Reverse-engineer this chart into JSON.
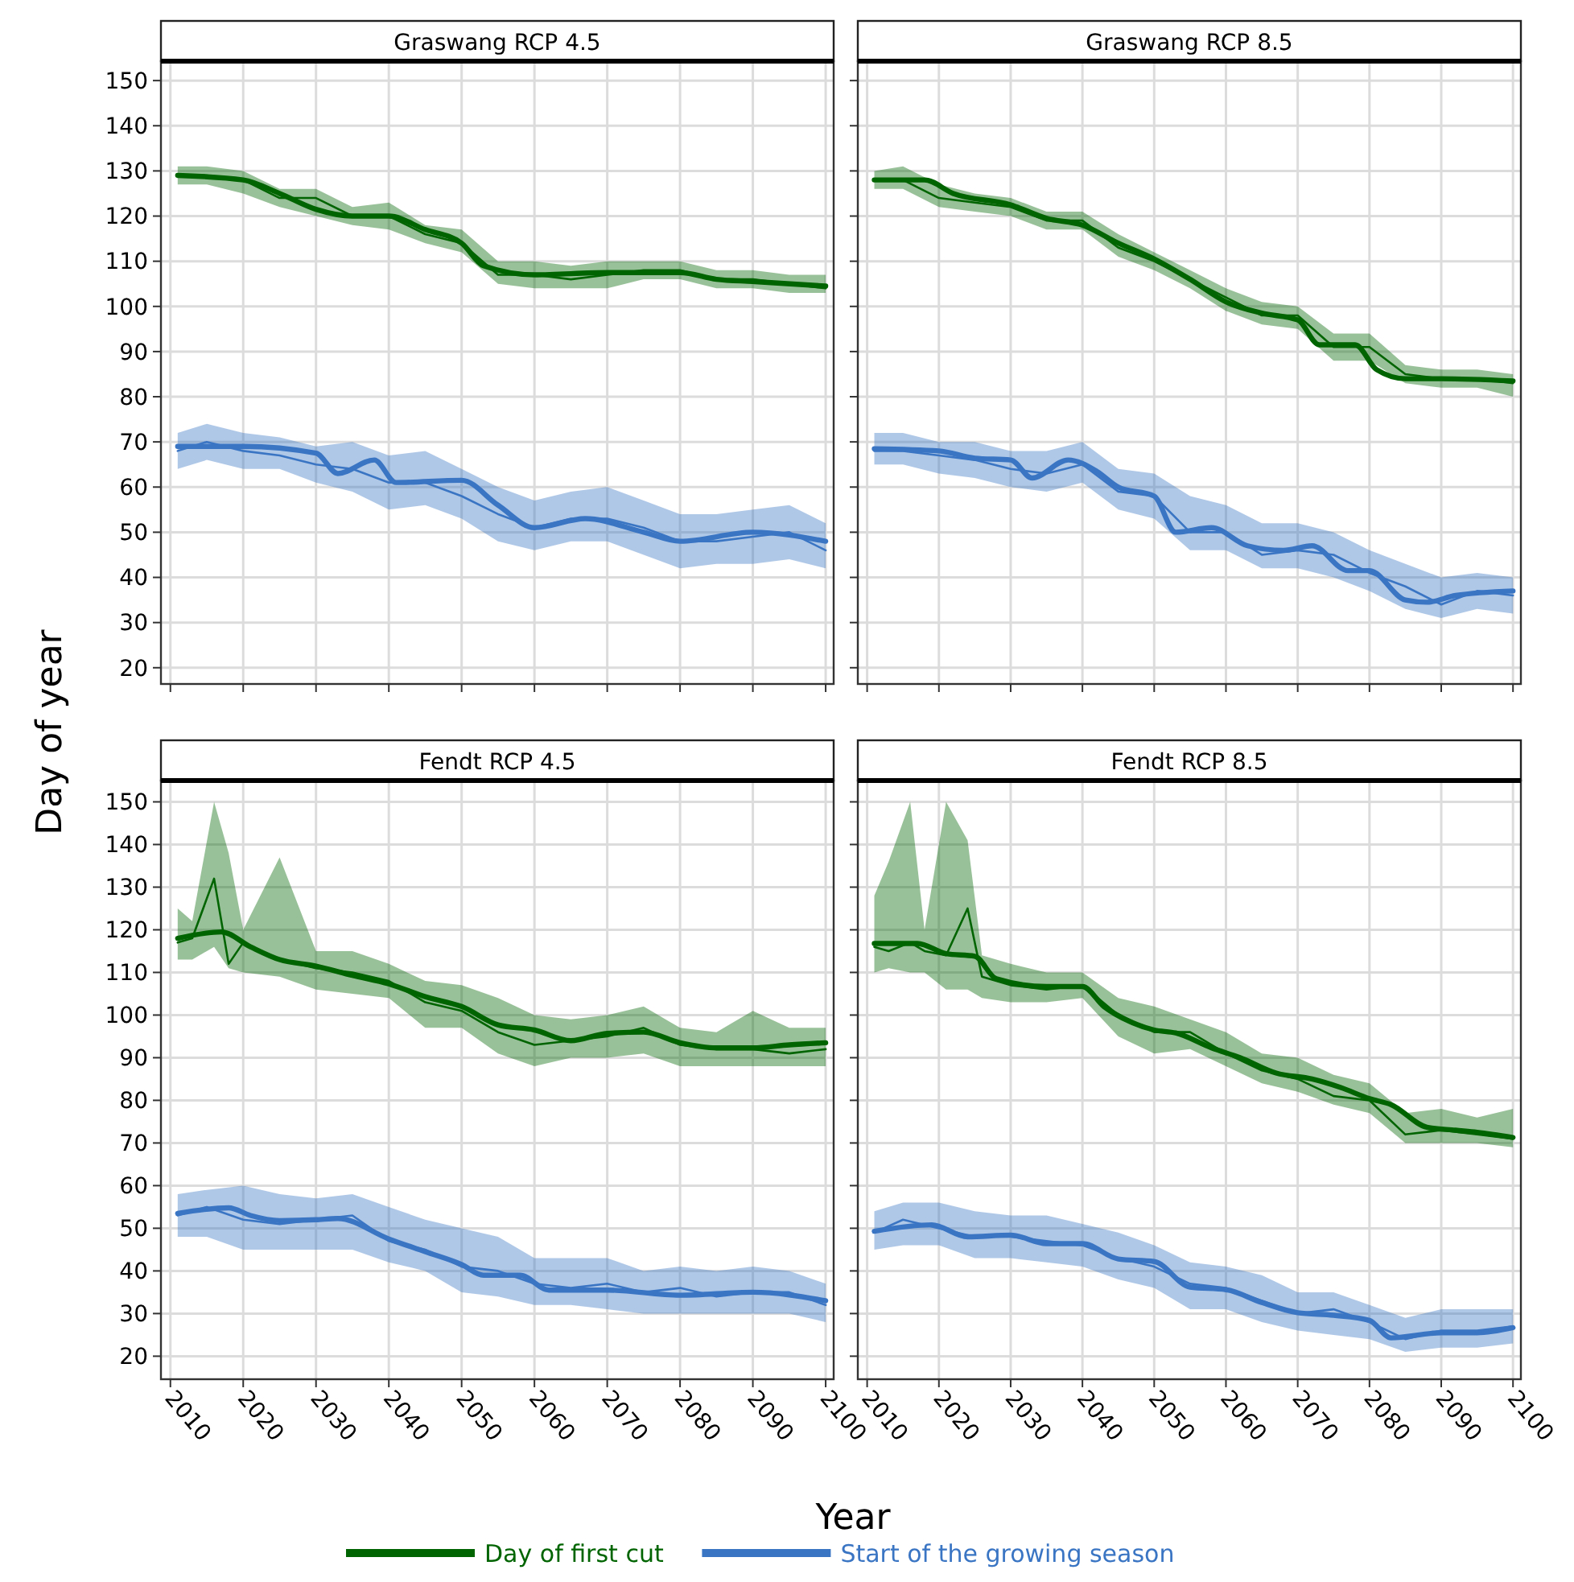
{
  "chart_data": [
    {
      "type": "line",
      "title": "Graswang RCP 4.5",
      "ylabel": "Day of year",
      "xlim": [
        2008.7,
        2101.1
      ],
      "ylim": [
        16.4,
        154.3
      ],
      "xticks": [
        2010,
        2020,
        2030,
        2040,
        2050,
        2060,
        2070,
        2080,
        2090,
        2100
      ],
      "yticks": [
        20,
        30,
        40,
        50,
        60,
        70,
        80,
        90,
        100,
        110,
        120,
        130,
        140,
        150
      ],
      "grid": true,
      "tick_labels": "y",
      "series": [
        {
          "color": "#006400",
          "x": [
            2011,
            2015,
            2020,
            2025,
            2030,
            2035,
            2040,
            2045,
            2050,
            2055,
            2060,
            2065,
            2070,
            2075,
            2080,
            2085,
            2090,
            2095,
            2100
          ],
          "values": [
            129,
            129,
            128,
            124,
            124,
            120,
            120,
            116,
            114,
            107,
            107,
            106,
            107,
            108,
            108,
            106,
            106,
            105,
            104
          ],
          "lower": [
            127,
            127,
            125,
            122,
            120,
            118,
            117,
            114,
            112,
            105,
            104,
            104,
            104,
            106,
            106,
            104,
            104,
            103,
            103
          ],
          "upper": [
            131,
            131,
            130,
            126,
            126,
            122,
            123,
            118,
            117,
            110,
            110,
            109,
            110,
            110,
            110,
            108,
            108,
            107,
            107
          ]
        },
        {
          "color": "#006400",
          "x": [
            2011,
            2020,
            2025,
            2030,
            2035,
            2040,
            2045,
            2050,
            2053,
            2060,
            2070,
            2080,
            2085,
            2090,
            2100
          ],
          "values": [
            129,
            128,
            125,
            121.5,
            120,
            120,
            117,
            114,
            109,
            107,
            107.5,
            107.5,
            106,
            105.5,
            104.5
          ]
        },
        {
          "color": "#3a75c4",
          "x": [
            2011,
            2015,
            2020,
            2025,
            2030,
            2035,
            2040,
            2045,
            2050,
            2055,
            2060,
            2065,
            2070,
            2075,
            2080,
            2085,
            2090,
            2095,
            2100
          ],
          "values": [
            68,
            70,
            68,
            67,
            65,
            64,
            61,
            61,
            58,
            54,
            51,
            53,
            53,
            51,
            48,
            48,
            49,
            50,
            46
          ],
          "lower": [
            64,
            66,
            64,
            64,
            61,
            59,
            55,
            56,
            53,
            48,
            46,
            48,
            48,
            45,
            42,
            43,
            43,
            44,
            42
          ],
          "upper": [
            72,
            74,
            72,
            71,
            69,
            70,
            67,
            68,
            64,
            60,
            57,
            59,
            60,
            57,
            54,
            54,
            55,
            56,
            52
          ]
        },
        {
          "color": "#3a75c4",
          "x": [
            2011,
            2020,
            2030,
            2033,
            2038,
            2041,
            2050,
            2055,
            2060,
            2067,
            2075,
            2080,
            2090,
            2100
          ],
          "values": [
            69,
            69,
            67.5,
            63,
            66,
            61,
            61.5,
            56,
            51,
            53,
            50,
            48,
            50,
            48
          ]
        }
      ]
    },
    {
      "type": "line",
      "title": "Graswang RCP 8.5",
      "xlim": [
        2008.7,
        2101.1
      ],
      "ylim": [
        16.4,
        154.3
      ],
      "xticks": [
        2010,
        2020,
        2030,
        2040,
        2050,
        2060,
        2070,
        2080,
        2090,
        2100
      ],
      "yticks": [
        20,
        30,
        40,
        50,
        60,
        70,
        80,
        90,
        100,
        110,
        120,
        130,
        140,
        150
      ],
      "grid": true,
      "tick_labels": false,
      "series": [
        {
          "color": "#006400",
          "x": [
            2011,
            2015,
            2020,
            2025,
            2030,
            2035,
            2040,
            2045,
            2050,
            2055,
            2060,
            2065,
            2070,
            2075,
            2080,
            2085,
            2090,
            2095,
            2100
          ],
          "values": [
            128,
            128,
            124,
            123,
            122,
            119,
            119,
            113,
            110,
            106,
            102,
            98,
            98,
            91,
            91,
            85,
            84,
            84,
            83
          ],
          "lower": [
            126,
            126,
            122,
            121,
            120,
            117,
            117,
            111,
            108,
            104,
            99,
            96,
            95,
            88,
            88,
            83,
            82,
            82,
            80
          ],
          "upper": [
            130,
            131,
            127,
            125,
            124,
            121,
            121,
            116,
            112,
            108,
            104,
            101,
            100,
            94,
            94,
            87,
            86,
            86,
            85
          ]
        },
        {
          "color": "#006400",
          "x": [
            2011,
            2018,
            2022,
            2030,
            2035,
            2040,
            2045,
            2050,
            2055,
            2060,
            2065,
            2070,
            2073,
            2078,
            2081,
            2085,
            2090,
            2100
          ],
          "values": [
            128,
            128,
            125,
            122.5,
            119.5,
            118,
            114,
            110.5,
            106,
            101,
            98.5,
            97,
            91.5,
            91.5,
            86,
            84,
            84,
            83.5
          ]
        },
        {
          "color": "#3a75c4",
          "x": [
            2011,
            2015,
            2020,
            2025,
            2030,
            2035,
            2040,
            2045,
            2050,
            2055,
            2060,
            2065,
            2070,
            2075,
            2080,
            2085,
            2090,
            2095,
            2100
          ],
          "values": [
            68,
            68,
            67,
            66,
            64,
            63,
            65,
            59,
            58,
            50,
            50,
            45,
            46,
            45,
            41,
            38,
            34,
            37,
            36
          ],
          "lower": [
            65,
            65,
            63,
            62,
            60,
            59,
            61,
            55,
            53,
            46,
            46,
            42,
            42,
            40,
            37,
            33,
            31,
            33,
            32
          ],
          "upper": [
            72,
            72,
            70,
            70,
            68,
            68,
            70,
            64,
            63,
            58,
            56,
            52,
            52,
            50,
            46,
            43,
            40,
            41,
            40
          ]
        },
        {
          "color": "#3a75c4",
          "x": [
            2011,
            2020,
            2025,
            2030,
            2033,
            2038,
            2042,
            2045,
            2050,
            2053,
            2058,
            2063,
            2068,
            2072,
            2077,
            2080,
            2085,
            2088,
            2092,
            2100
          ],
          "values": [
            68.5,
            68,
            66.4,
            66,
            62,
            66,
            63.5,
            60,
            58,
            50,
            51,
            47,
            46,
            47,
            41.5,
            41.5,
            35,
            34.5,
            36,
            37
          ]
        }
      ]
    },
    {
      "type": "line",
      "title": "Fendt RCP 4.5",
      "xlabel": "Year",
      "legend": "bottom",
      "xlim": [
        2008.7,
        2101.1
      ],
      "ylim": [
        14.6,
        155
      ],
      "xticks": [
        2010,
        2020,
        2030,
        2040,
        2050,
        2060,
        2070,
        2080,
        2090,
        2100
      ],
      "yticks": [
        20,
        30,
        40,
        50,
        60,
        70,
        80,
        90,
        100,
        110,
        120,
        130,
        140,
        150
      ],
      "grid": true,
      "series": [
        {
          "color": "#006400",
          "x": [
            2011,
            2013,
            2016,
            2018,
            2020,
            2025,
            2030,
            2035,
            2040,
            2045,
            2050,
            2055,
            2060,
            2065,
            2070,
            2075,
            2080,
            2085,
            2090,
            2095,
            2100
          ],
          "values": [
            117,
            118,
            132,
            112,
            117,
            113,
            111,
            110,
            108,
            103,
            101,
            96,
            93,
            94,
            95,
            97,
            93,
            92,
            92,
            91,
            92
          ],
          "lower": [
            113,
            113,
            116,
            111,
            110,
            109,
            106,
            105,
            104,
            97,
            97,
            91,
            88,
            90,
            90,
            91,
            88,
            88,
            88,
            88,
            88
          ],
          "upper": [
            125,
            122,
            150,
            138,
            120,
            137,
            115,
            115,
            112,
            108,
            107,
            104,
            100,
            99,
            100,
            102,
            97,
            96,
            101,
            97,
            97
          ]
        },
        {
          "name": "Day of first cut",
          "color": "#006400",
          "x": [
            2011,
            2017,
            2021,
            2025,
            2030,
            2035,
            2040,
            2045,
            2050,
            2055,
            2060,
            2065,
            2070,
            2075,
            2080,
            2085,
            2090,
            2095,
            2100
          ],
          "values": [
            118,
            119.5,
            116,
            113,
            111.5,
            109.3,
            107.3,
            104.3,
            102,
            97.7,
            96.5,
            94,
            95.7,
            96,
            93.5,
            92.3,
            92.3,
            93,
            93.5
          ]
        },
        {
          "color": "#3a75c4",
          "x": [
            2011,
            2015,
            2020,
            2025,
            2030,
            2035,
            2040,
            2045,
            2050,
            2055,
            2060,
            2065,
            2070,
            2075,
            2080,
            2085,
            2090,
            2095,
            2100
          ],
          "values": [
            53,
            55,
            52,
            51,
            52,
            53,
            47,
            45,
            41,
            40,
            37,
            36,
            37,
            35,
            36,
            34,
            35,
            35,
            32
          ],
          "lower": [
            48,
            48,
            45,
            45,
            45,
            45,
            42,
            40,
            35,
            34,
            32,
            32,
            31,
            30,
            30,
            30,
            30,
            30,
            28
          ],
          "upper": [
            58,
            59,
            60,
            58,
            57,
            58,
            55,
            52,
            50,
            48,
            43,
            43,
            43,
            40,
            41,
            40,
            41,
            40,
            37
          ]
        },
        {
          "name": "Start of the growing season",
          "color": "#3a75c4",
          "x": [
            2011,
            2018,
            2021,
            2025,
            2030,
            2033,
            2040,
            2045,
            2050,
            2053,
            2058,
            2062,
            2070,
            2080,
            2090,
            2100
          ],
          "values": [
            53.5,
            54.8,
            53,
            51.8,
            52,
            52.3,
            47.5,
            44.5,
            41.5,
            39,
            39,
            35.5,
            35.5,
            34.3,
            35,
            33
          ]
        }
      ]
    },
    {
      "type": "line",
      "title": "Fendt RCP 8.5",
      "xlim": [
        2008.7,
        2101.1
      ],
      "ylim": [
        14.6,
        155
      ],
      "xticks": [
        2010,
        2020,
        2030,
        2040,
        2050,
        2060,
        2070,
        2080,
        2090,
        2100
      ],
      "yticks": [
        20,
        30,
        40,
        50,
        60,
        70,
        80,
        90,
        100,
        110,
        120,
        130,
        140,
        150
      ],
      "grid": true,
      "tick_labels": "x",
      "series": [
        {
          "color": "#006400",
          "x": [
            2011,
            2013,
            2016,
            2018,
            2021,
            2024,
            2026,
            2030,
            2035,
            2040,
            2045,
            2050,
            2055,
            2060,
            2065,
            2070,
            2075,
            2080,
            2085,
            2090,
            2095,
            2100
          ],
          "values": [
            116,
            115,
            117,
            115,
            114,
            125,
            109,
            107,
            106,
            107,
            100,
            96,
            96,
            91,
            87,
            85,
            81,
            80,
            72,
            73,
            72,
            71
          ],
          "lower": [
            110,
            111,
            110,
            110,
            106,
            106,
            104,
            103,
            103,
            104,
            95,
            91,
            92,
            88,
            84,
            82,
            79,
            77,
            70,
            70,
            70,
            69
          ],
          "upper": [
            128,
            136,
            150,
            120,
            150,
            141,
            114,
            112,
            110,
            110,
            104,
            102,
            99,
            96,
            91,
            90,
            86,
            84,
            77,
            78,
            76,
            78
          ]
        },
        {
          "color": "#006400",
          "x": [
            2011,
            2017,
            2021,
            2025,
            2028,
            2035,
            2040,
            2043,
            2047,
            2050,
            2053,
            2058,
            2062,
            2067,
            2072,
            2076,
            2080,
            2083,
            2088,
            2092,
            2095,
            2100
          ],
          "values": [
            116.8,
            116.8,
            114.4,
            113.8,
            108.5,
            106.7,
            106.7,
            102,
            98.2,
            96.5,
            95.8,
            92.3,
            90,
            86.4,
            85,
            83,
            80.4,
            79,
            73.7,
            73,
            72.5,
            71.3
          ]
        },
        {
          "color": "#3a75c4",
          "x": [
            2011,
            2015,
            2020,
            2025,
            2030,
            2035,
            2040,
            2045,
            2050,
            2055,
            2060,
            2065,
            2070,
            2075,
            2080,
            2085,
            2090,
            2095,
            2100
          ],
          "values": [
            49,
            52,
            50,
            48,
            48,
            47,
            46,
            43,
            41,
            37,
            36,
            33,
            30,
            31,
            28,
            24,
            26,
            26,
            27
          ],
          "lower": [
            45,
            46,
            46,
            43,
            43,
            42,
            41,
            38,
            36,
            31,
            31,
            28,
            26,
            25,
            24,
            21,
            22,
            22,
            23
          ],
          "upper": [
            54,
            56,
            56,
            54,
            53,
            53,
            51,
            49,
            46,
            42,
            41,
            39,
            35,
            35,
            32,
            29,
            31,
            31,
            31
          ]
        },
        {
          "color": "#3a75c4",
          "x": [
            2011,
            2019,
            2024,
            2030,
            2035,
            2040,
            2045,
            2050,
            2055,
            2060,
            2065,
            2070,
            2075,
            2080,
            2083,
            2090,
            2095,
            2100
          ],
          "values": [
            49.3,
            50.8,
            48,
            48.4,
            46.4,
            46.4,
            42.8,
            42.2,
            36.2,
            35.6,
            32.6,
            30.2,
            29.6,
            28.4,
            24.3,
            25.5,
            25.5,
            26.7
          ]
        }
      ]
    }
  ]
}
